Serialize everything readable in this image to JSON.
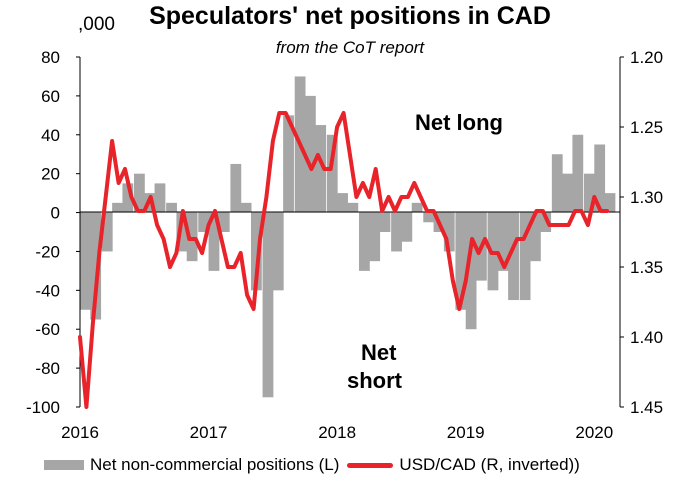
{
  "chart_data": {
    "type": "bar+line",
    "title": "Speculators' net positions in CAD",
    "subtitle": "from the CoT report",
    "left_unit": ",000",
    "annotations": {
      "net_long": "Net long",
      "net_short_1": "Net",
      "net_short_2": "short"
    },
    "x_ticks": [
      "2016",
      "2017",
      "2018",
      "2019",
      "2020"
    ],
    "y_left": {
      "ticks": [
        "80",
        "60",
        "40",
        "20",
        "0",
        "-20",
        "-40",
        "-60",
        "-80",
        "-100"
      ],
      "ylim": [
        -100,
        80
      ]
    },
    "y_right": {
      "ticks": [
        "1.20",
        "1.25",
        "1.30",
        "1.35",
        "1.40",
        "1.45"
      ],
      "ylim": [
        1.2,
        1.45
      ],
      "inverted": true
    },
    "legend_position": "bottom",
    "colors": {
      "bars": "#a6a6a6",
      "line": "#e8232a"
    },
    "series": [
      {
        "name": "Net non-commercial positions (L)",
        "kind": "bar",
        "x": [
          2016.0,
          2016.08,
          2016.17,
          2016.25,
          2016.33,
          2016.42,
          2016.5,
          2016.58,
          2016.67,
          2016.75,
          2016.83,
          2016.92,
          2017.0,
          2017.08,
          2017.17,
          2017.25,
          2017.33,
          2017.42,
          2017.5,
          2017.58,
          2017.67,
          2017.75,
          2017.83,
          2017.92,
          2018.0,
          2018.08,
          2018.17,
          2018.25,
          2018.33,
          2018.42,
          2018.5,
          2018.58,
          2018.67,
          2018.75,
          2018.83,
          2018.92,
          2019.0,
          2019.08,
          2019.17,
          2019.25,
          2019.33,
          2019.42,
          2019.5,
          2019.58,
          2019.67,
          2019.75,
          2019.83,
          2019.92,
          2020.0,
          2020.08
        ],
        "values": [
          -50,
          -55,
          -20,
          5,
          15,
          20,
          10,
          15,
          5,
          -20,
          -25,
          -10,
          -30,
          -10,
          25,
          5,
          -40,
          -95,
          -40,
          50,
          70,
          60,
          45,
          40,
          10,
          5,
          -30,
          -25,
          -10,
          -20,
          -15,
          5,
          -5,
          -10,
          -20,
          -50,
          -60,
          -35,
          -40,
          -30,
          -45,
          -45,
          -25,
          -10,
          30,
          20,
          40,
          20,
          35,
          10
        ]
      },
      {
        "name": "USD/CAD (R, inverted))",
        "kind": "line",
        "x": [
          2016.0,
          2016.05,
          2016.1,
          2016.15,
          2016.2,
          2016.25,
          2016.3,
          2016.35,
          2016.4,
          2016.45,
          2016.5,
          2016.55,
          2016.6,
          2016.65,
          2016.7,
          2016.75,
          2016.8,
          2016.85,
          2016.9,
          2016.95,
          2017.0,
          2017.05,
          2017.1,
          2017.15,
          2017.2,
          2017.25,
          2017.3,
          2017.35,
          2017.4,
          2017.45,
          2017.5,
          2017.55,
          2017.6,
          2017.65,
          2017.7,
          2017.75,
          2017.8,
          2017.85,
          2017.9,
          2017.95,
          2018.0,
          2018.05,
          2018.1,
          2018.15,
          2018.2,
          2018.25,
          2018.3,
          2018.35,
          2018.4,
          2018.45,
          2018.5,
          2018.55,
          2018.6,
          2018.65,
          2018.7,
          2018.75,
          2018.8,
          2018.85,
          2018.9,
          2018.95,
          2019.0,
          2019.05,
          2019.1,
          2019.15,
          2019.2,
          2019.25,
          2019.3,
          2019.35,
          2019.4,
          2019.45,
          2019.5,
          2019.55,
          2019.6,
          2019.65,
          2019.7,
          2019.75,
          2019.8,
          2019.85,
          2019.9,
          2019.95,
          2020.0,
          2020.05,
          2020.1
        ],
        "values": [
          1.4,
          1.45,
          1.39,
          1.34,
          1.3,
          1.26,
          1.29,
          1.28,
          1.3,
          1.31,
          1.31,
          1.3,
          1.32,
          1.33,
          1.35,
          1.34,
          1.31,
          1.33,
          1.33,
          1.34,
          1.32,
          1.31,
          1.33,
          1.35,
          1.35,
          1.34,
          1.37,
          1.38,
          1.33,
          1.3,
          1.26,
          1.24,
          1.24,
          1.25,
          1.26,
          1.27,
          1.28,
          1.27,
          1.28,
          1.28,
          1.25,
          1.24,
          1.27,
          1.3,
          1.29,
          1.3,
          1.28,
          1.31,
          1.3,
          1.31,
          1.3,
          1.3,
          1.29,
          1.3,
          1.31,
          1.31,
          1.32,
          1.33,
          1.36,
          1.38,
          1.36,
          1.33,
          1.34,
          1.33,
          1.34,
          1.34,
          1.35,
          1.34,
          1.33,
          1.33,
          1.32,
          1.31,
          1.31,
          1.32,
          1.32,
          1.32,
          1.32,
          1.31,
          1.31,
          1.32,
          1.3,
          1.31,
          1.31
        ]
      }
    ]
  }
}
